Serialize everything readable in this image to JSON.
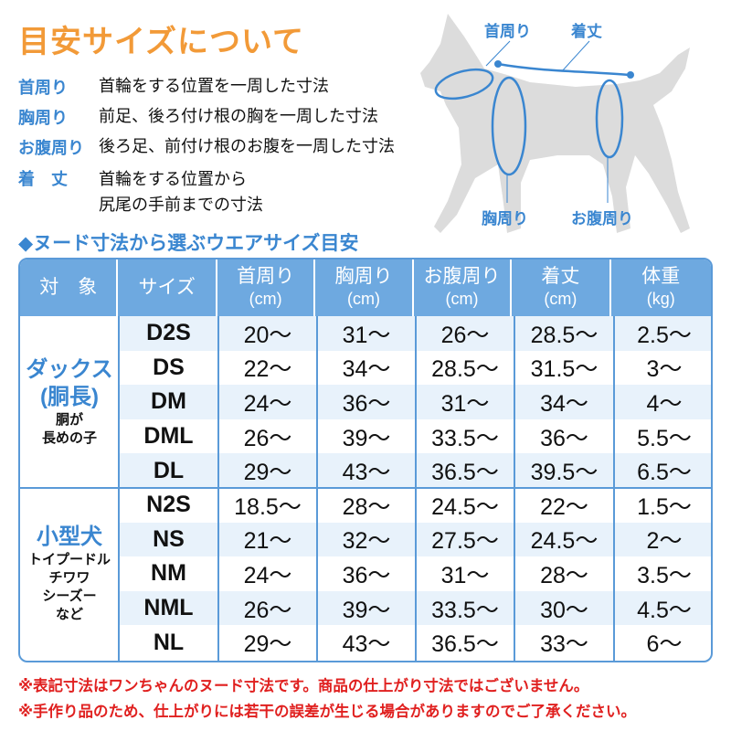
{
  "title": "目安サイズについて",
  "definitions": [
    {
      "term": "首周り",
      "desc": [
        "首輪をする位置を一周した寸法"
      ]
    },
    {
      "term": "胸周り",
      "desc": [
        "前足、後ろ付け根の胸を一周した寸法"
      ]
    },
    {
      "term": "お腹周り",
      "desc": [
        "後ろ足、前付け根のお腹を一周した寸法"
      ]
    },
    {
      "term": "着　丈",
      "desc": [
        "首輪をする位置から",
        "尻尾の手前までの寸法"
      ]
    }
  ],
  "diagram": {
    "neck": "首周り",
    "length": "着丈",
    "chest": "胸周り",
    "belly": "お腹周り",
    "color": "#3a86d0"
  },
  "subheading": "◆ヌード寸法から選ぶウエアサイズ目安",
  "table": {
    "headers": [
      {
        "label": "対　象",
        "unit": ""
      },
      {
        "label": "サイズ",
        "unit": ""
      },
      {
        "label": "首周り",
        "unit": "(cm)"
      },
      {
        "label": "胸周り",
        "unit": "(cm)"
      },
      {
        "label": "お腹周り",
        "unit": "(cm)"
      },
      {
        "label": "着丈",
        "unit": "(cm)"
      },
      {
        "label": "体重",
        "unit": "(kg)"
      }
    ],
    "groups": [
      {
        "name": [
          "ダックス",
          "(胴長)"
        ],
        "sub": [
          "胴が",
          "長めの子"
        ],
        "rows": [
          [
            "D2S",
            "20〜",
            "31〜",
            "26〜",
            "28.5〜",
            "2.5〜"
          ],
          [
            "DS",
            "22〜",
            "34〜",
            "28.5〜",
            "31.5〜",
            "3〜"
          ],
          [
            "DM",
            "24〜",
            "36〜",
            "31〜",
            "34〜",
            "4〜"
          ],
          [
            "DML",
            "26〜",
            "39〜",
            "33.5〜",
            "36〜",
            "5.5〜"
          ],
          [
            "DL",
            "29〜",
            "43〜",
            "36.5〜",
            "39.5〜",
            "6.5〜"
          ]
        ]
      },
      {
        "name": [
          "小型犬"
        ],
        "sub": [
          "トイプードル",
          "チワワ",
          "シーズー",
          "など"
        ],
        "rows": [
          [
            "N2S",
            "18.5〜",
            "28〜",
            "24.5〜",
            "22〜",
            "1.5〜"
          ],
          [
            "NS",
            "21〜",
            "32〜",
            "27.5〜",
            "24.5〜",
            "2〜"
          ],
          [
            "NM",
            "24〜",
            "36〜",
            "31〜",
            "28〜",
            "3.5〜"
          ],
          [
            "NML",
            "26〜",
            "39〜",
            "33.5〜",
            "30〜",
            "4.5〜"
          ],
          [
            "NL",
            "29〜",
            "43〜",
            "36.5〜",
            "33〜",
            "6〜"
          ]
        ]
      }
    ]
  },
  "notes": [
    "※表記寸法はワンちゃんのヌード寸法です。商品の仕上がり寸法ではございません。",
    "※手作り品のため、仕上がりには若干の誤差が生じる場合がありますのでご了承ください。"
  ],
  "colors": {
    "title": "#f29a38",
    "accent": "#3a86d0",
    "header": "#6ea9e0",
    "note": "#e0201f"
  }
}
